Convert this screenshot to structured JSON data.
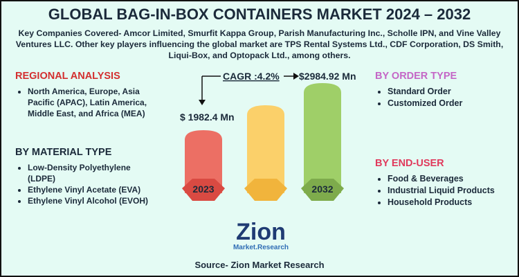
{
  "header": {
    "title": "GLOBAL BAG-IN-BOX CONTAINERS MARKET 2024 – 2032",
    "description": "Key Companies Covered- Amcor Limited, Smurfit Kappa Group, Parish Manufacturing Inc., Scholle IPN, and Vine Valley Ventures LLC. Other key players influencing the global market are TPS Rental Systems Ltd., CDF Corporation, DS Smith, Liqui-Box, and Optopack Ltd., among others."
  },
  "center": {
    "cagr": "CAGR :4.2%",
    "start_value": "$ 1982.4 Mn",
    "end_value": "$2984.92 Mn",
    "start_year": "2023",
    "end_year": "2032"
  },
  "sections": [
    {
      "title": "REGIONAL ANALYSIS",
      "items": [
        "North America, Europe, Asia Pacific (APAC), Latin America, Middle East, and Africa (MEA)"
      ]
    },
    {
      "title": "BY MATERIAL TYPE",
      "items": [
        "Low-Density Polyethylene (LDPE)",
        "Ethylene Vinyl Acetate (EVA)",
        "Ethylene Vinyl Alcohol (EVOH)"
      ]
    },
    {
      "title": "BY ORDER TYPE",
      "items": [
        "Standard Order",
        "Customized Order"
      ]
    },
    {
      "title": "BY END-USER",
      "items": [
        "Food & Beverages",
        "Industrial Liquid Products",
        "Household Products"
      ]
    }
  ],
  "logo": {
    "main": "Zion",
    "sub": "Market.Research"
  },
  "source": "Source- Zion Market Research"
}
